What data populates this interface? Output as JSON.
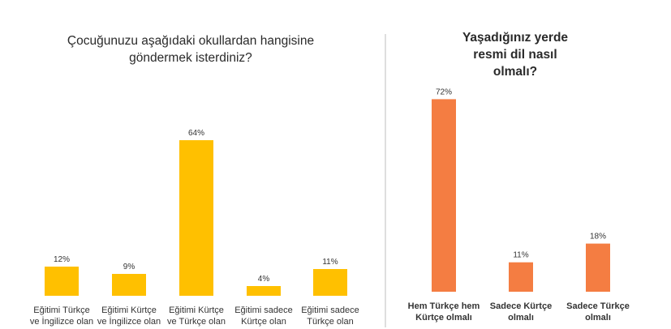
{
  "chart_data": [
    {
      "type": "bar",
      "title": "Çocuğunuzu aşağıdaki okullardan hangisine göndermek isterdiniz?",
      "categories": [
        [
          "Eğitimi Türkçe",
          "ve İngilizce olan"
        ],
        [
          "Eğitimi Kürtçe",
          "ve İngilizce olan"
        ],
        [
          "Eğitimi Kürtçe",
          "ve Türkçe olan"
        ],
        [
          "Eğitimi sadece",
          "Kürtçe olan"
        ],
        [
          "Eğitimi sadece",
          "Türkçe olan"
        ]
      ],
      "values": [
        12,
        9,
        64,
        4,
        11
      ],
      "value_labels": [
        "12%",
        "9%",
        "64%",
        "4%",
        "11%"
      ],
      "unit": "%",
      "color": "#FFC000",
      "ylim": [
        0,
        100
      ]
    },
    {
      "type": "bar",
      "title": "Yaşadığınız yerde resmi dil nasıl olmalı?",
      "categories": [
        [
          "Hem Türkçe hem",
          "Kürtçe olmalı"
        ],
        [
          "Sadece Kürtçe",
          "olmalı"
        ],
        [
          "Sadece Türkçe",
          "olmalı"
        ]
      ],
      "values": [
        72,
        11,
        18
      ],
      "value_labels": [
        "72%",
        "11%",
        "18%"
      ],
      "unit": "%",
      "color": "#F47D42",
      "ylim": [
        0,
        100
      ]
    }
  ]
}
